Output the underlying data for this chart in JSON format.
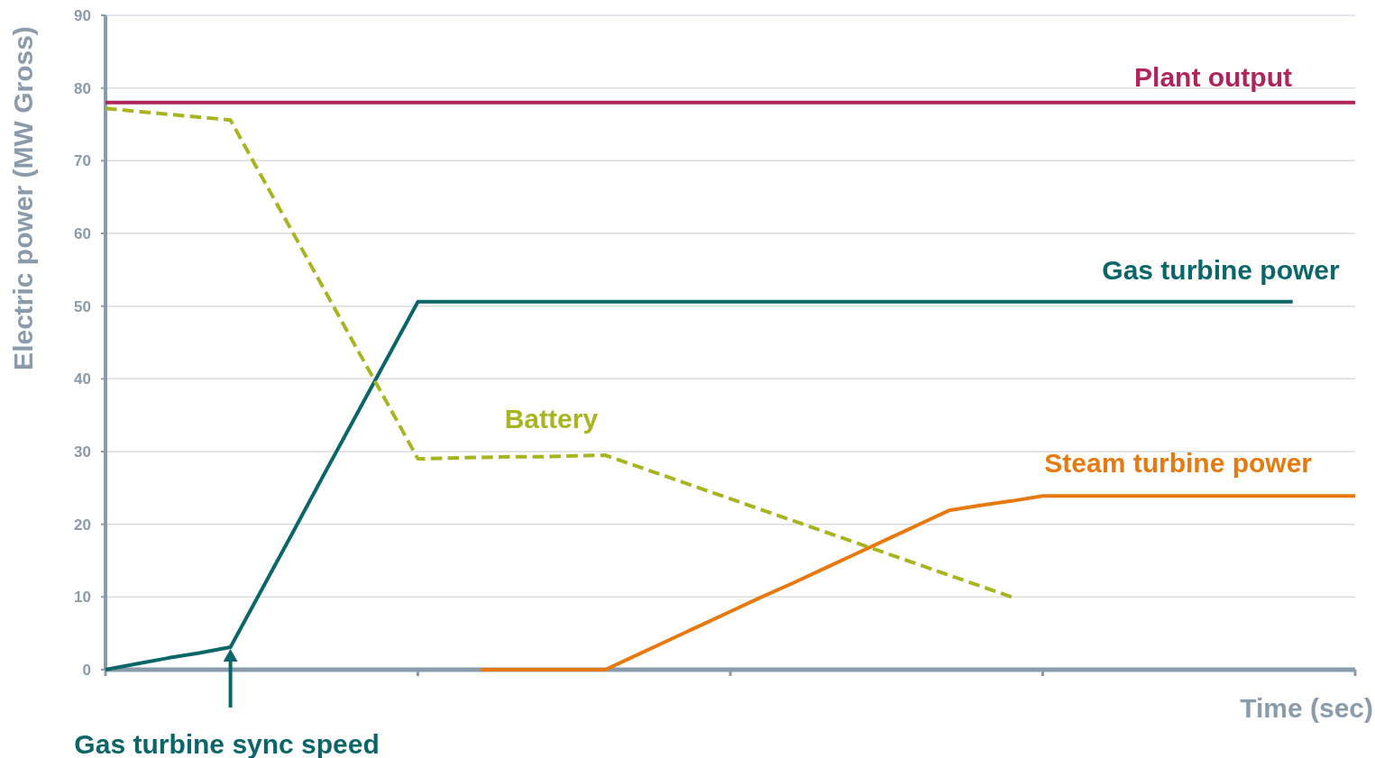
{
  "chart_data": {
    "type": "line",
    "xlabel": "Time (sec)",
    "ylabel": "Electric power (MW Gross)",
    "categories": [
      null,
      null,
      null,
      null,
      null,
      null,
      null,
      null,
      null,
      null,
      null,
      null,
      null,
      null,
      null,
      null,
      null,
      null,
      null,
      null,
      null,
      null,
      null,
      null,
      null,
      null,
      null,
      null,
      null,
      null,
      null,
      null,
      null,
      null,
      null,
      null,
      null,
      null,
      null,
      null,
      null
    ],
    "ylim": [
      0,
      90
    ],
    "yticks": [
      0,
      10,
      20,
      30,
      40,
      50,
      60,
      70,
      80,
      90
    ],
    "grid": "y",
    "legend": false,
    "marker": "none",
    "series": [
      {
        "name": "Plant output",
        "color": "#b0245e",
        "values": [
          78,
          78,
          78,
          78,
          78,
          78,
          78,
          78,
          78,
          78,
          78,
          78,
          78,
          78,
          78,
          78,
          78,
          78,
          78,
          78,
          78,
          78,
          78,
          78,
          78,
          78,
          78,
          78,
          78,
          78,
          78,
          78,
          78,
          78,
          78,
          78,
          78,
          78,
          78,
          78,
          78
        ],
        "line_style": "solid"
      },
      {
        "name": "Gas turbine power",
        "color": "#0b666a",
        "values": [
          0,
          0.8,
          1.6,
          2.3,
          3.1,
          11,
          18.9,
          26.9,
          34.8,
          42.7,
          50.6,
          50.6,
          50.6,
          50.6,
          50.6,
          50.6,
          50.6,
          50.6,
          50.6,
          50.6,
          50.6,
          50.6,
          50.6,
          50.6,
          50.6,
          50.6,
          50.6,
          50.6,
          50.6,
          50.6,
          50.6,
          50.6,
          50.6,
          50.6,
          50.6,
          50.6,
          50.6,
          50.6,
          50.6,
          null,
          null
        ],
        "line_style": "solid"
      },
      {
        "name": "Battery",
        "color": "#a8b520",
        "values": [
          77.2,
          76.8,
          76.4,
          76,
          75.6,
          67.8,
          60.1,
          52.3,
          44.5,
          36.8,
          29,
          29.1,
          29.2,
          29.3,
          29.3,
          29.4,
          29.5,
          28,
          26.5,
          25,
          23.5,
          22,
          20.5,
          19,
          17.5,
          16,
          14.5,
          13,
          11.5,
          10,
          null,
          null,
          null,
          null,
          null,
          null,
          null,
          null,
          null,
          null,
          null
        ],
        "line_style": "dashed"
      },
      {
        "name": "Steam turbine power",
        "color": "#e8790e",
        "values": [
          null,
          null,
          null,
          null,
          null,
          null,
          null,
          null,
          null,
          null,
          null,
          null,
          0,
          0,
          0,
          0,
          0,
          2,
          4,
          6,
          8,
          10,
          11.9,
          13.9,
          15.9,
          17.9,
          19.9,
          21.9,
          22.6,
          23.2,
          23.9,
          23.9,
          23.9,
          23.9,
          23.9,
          23.9,
          23.9,
          23.9,
          23.9,
          23.9,
          23.9
        ],
        "line_style": "solid"
      }
    ],
    "annotations": [
      "Gas turbine sync speed"
    ]
  }
}
